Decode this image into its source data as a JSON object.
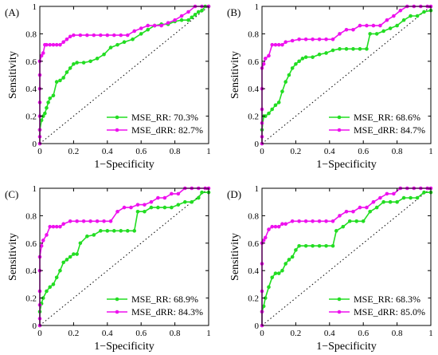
{
  "colors": {
    "mse_rr": "#22dd22",
    "mse_drr": "#ee11ee",
    "chance": "#000000"
  },
  "chart_data": [
    {
      "type": "line",
      "panel": "(A)",
      "xlabel": "1−Specificity",
      "ylabel": "Sensitivity",
      "xlim": [
        0,
        1
      ],
      "ylim": [
        0,
        1
      ],
      "xticks": [
        "0",
        "0.2",
        "0.4",
        "0.6",
        "0.8",
        "1"
      ],
      "yticks": [
        "0",
        "0.2",
        "0.4",
        "0.6",
        "0.8",
        "1"
      ],
      "legend_position": "bottom-right",
      "series": [
        {
          "name": "MSE_RR: 70.3%",
          "color": "#22dd22",
          "x": [
            0,
            0,
            0.01,
            0.02,
            0.03,
            0.04,
            0.05,
            0.06,
            0.08,
            0.1,
            0.12,
            0.14,
            0.16,
            0.18,
            0.2,
            0.22,
            0.26,
            0.3,
            0.34,
            0.38,
            0.42,
            0.46,
            0.5,
            0.55,
            0.6,
            0.64,
            0.68,
            0.72,
            0.76,
            0.8,
            0.84,
            0.88,
            0.9,
            0.92,
            0.94,
            0.96,
            0.98,
            1.0
          ],
          "y": [
            0,
            0.1,
            0.17,
            0.2,
            0.22,
            0.26,
            0.3,
            0.33,
            0.35,
            0.45,
            0.46,
            0.48,
            0.52,
            0.55,
            0.58,
            0.59,
            0.59,
            0.6,
            0.62,
            0.65,
            0.7,
            0.72,
            0.74,
            0.76,
            0.8,
            0.83,
            0.86,
            0.87,
            0.87,
            0.89,
            0.9,
            0.9,
            0.92,
            0.94,
            0.96,
            0.97,
            1.0,
            1.0
          ]
        },
        {
          "name": "MSE_dRR: 82.7%",
          "color": "#ee11ee",
          "x": [
            0,
            0,
            0,
            0,
            0,
            0,
            0,
            0,
            0.01,
            0.02,
            0.03,
            0.04,
            0.06,
            0.08,
            0.1,
            0.12,
            0.14,
            0.16,
            0.18,
            0.2,
            0.24,
            0.28,
            0.32,
            0.36,
            0.4,
            0.44,
            0.48,
            0.52,
            0.56,
            0.6,
            0.64,
            0.68,
            0.72,
            0.76,
            0.8,
            0.84,
            0.88,
            0.92,
            0.96,
            1.0
          ],
          "y": [
            0,
            0.05,
            0.1,
            0.2,
            0.3,
            0.4,
            0.5,
            0.6,
            0.64,
            0.66,
            0.72,
            0.72,
            0.72,
            0.72,
            0.72,
            0.72,
            0.74,
            0.76,
            0.78,
            0.79,
            0.79,
            0.79,
            0.79,
            0.79,
            0.79,
            0.79,
            0.79,
            0.79,
            0.82,
            0.84,
            0.86,
            0.86,
            0.86,
            0.88,
            0.9,
            0.93,
            0.96,
            1.0,
            1.0,
            1.0
          ]
        }
      ]
    },
    {
      "type": "line",
      "panel": "(B)",
      "xlabel": "1−Specificity",
      "ylabel": "Sensitivity",
      "xlim": [
        0,
        1
      ],
      "ylim": [
        0,
        1
      ],
      "xticks": [
        "0",
        "0.2",
        "0.4",
        "0.6",
        "0.8",
        "1"
      ],
      "yticks": [
        "0",
        "0.2",
        "0.4",
        "0.6",
        "0.8",
        "1"
      ],
      "legend_position": "bottom-right",
      "series": [
        {
          "name": "MSE_RR: 68.6%",
          "color": "#22dd22",
          "x": [
            0,
            0,
            0.01,
            0.02,
            0.04,
            0.06,
            0.08,
            0.1,
            0.12,
            0.14,
            0.16,
            0.18,
            0.2,
            0.22,
            0.24,
            0.26,
            0.3,
            0.34,
            0.38,
            0.42,
            0.46,
            0.5,
            0.54,
            0.58,
            0.62,
            0.64,
            0.68,
            0.72,
            0.76,
            0.8,
            0.84,
            0.88,
            0.92,
            0.96,
            1.0
          ],
          "y": [
            0,
            0.1,
            0.2,
            0.2,
            0.22,
            0.25,
            0.28,
            0.3,
            0.38,
            0.45,
            0.5,
            0.55,
            0.58,
            0.6,
            0.62,
            0.63,
            0.63,
            0.65,
            0.66,
            0.68,
            0.69,
            0.69,
            0.69,
            0.69,
            0.69,
            0.8,
            0.8,
            0.82,
            0.84,
            0.86,
            0.9,
            0.93,
            0.93,
            0.96,
            0.97
          ]
        },
        {
          "name": "MSE_dRR: 84.7%",
          "color": "#ee11ee",
          "x": [
            0,
            0,
            0,
            0,
            0,
            0,
            0.01,
            0.02,
            0.04,
            0.06,
            0.08,
            0.1,
            0.12,
            0.14,
            0.18,
            0.22,
            0.26,
            0.3,
            0.34,
            0.38,
            0.42,
            0.46,
            0.5,
            0.54,
            0.58,
            0.62,
            0.66,
            0.7,
            0.74,
            0.78,
            0.82,
            0.86,
            0.9,
            0.94,
            0.98,
            1.0
          ],
          "y": [
            0,
            0.05,
            0.15,
            0.25,
            0.4,
            0.55,
            0.58,
            0.62,
            0.64,
            0.72,
            0.72,
            0.72,
            0.72,
            0.74,
            0.75,
            0.76,
            0.76,
            0.76,
            0.76,
            0.76,
            0.76,
            0.8,
            0.83,
            0.83,
            0.86,
            0.86,
            0.86,
            0.86,
            0.9,
            0.93,
            0.97,
            1.0,
            1.0,
            1.0,
            1.0,
            1.0
          ]
        }
      ]
    },
    {
      "type": "line",
      "panel": "(C)",
      "xlabel": "1−Specificity",
      "ylabel": "Sensitivity",
      "xlim": [
        0,
        1
      ],
      "ylim": [
        0,
        1
      ],
      "xticks": [
        "0",
        "0.2",
        "0.4",
        "0.6",
        "0.8",
        "1"
      ],
      "yticks": [
        "0",
        "0.2",
        "0.4",
        "0.6",
        "0.8",
        "1"
      ],
      "legend_position": "bottom-right",
      "series": [
        {
          "name": "MSE_RR: 68.9%",
          "color": "#22dd22",
          "x": [
            0,
            0,
            0.01,
            0.02,
            0.04,
            0.06,
            0.08,
            0.1,
            0.12,
            0.14,
            0.16,
            0.18,
            0.2,
            0.22,
            0.24,
            0.28,
            0.32,
            0.36,
            0.4,
            0.44,
            0.48,
            0.52,
            0.56,
            0.58,
            0.62,
            0.66,
            0.7,
            0.74,
            0.78,
            0.82,
            0.86,
            0.9,
            0.94,
            0.96,
            1.0
          ],
          "y": [
            0,
            0.1,
            0.16,
            0.2,
            0.25,
            0.28,
            0.3,
            0.35,
            0.4,
            0.46,
            0.48,
            0.5,
            0.52,
            0.52,
            0.6,
            0.65,
            0.66,
            0.69,
            0.69,
            0.69,
            0.69,
            0.69,
            0.69,
            0.83,
            0.83,
            0.86,
            0.86,
            0.86,
            0.86,
            0.88,
            0.9,
            0.9,
            0.93,
            0.97,
            0.97
          ]
        },
        {
          "name": "MSE_dRR: 84.3%",
          "color": "#ee11ee",
          "x": [
            0,
            0,
            0,
            0,
            0,
            0,
            0.01,
            0.02,
            0.04,
            0.06,
            0.08,
            0.1,
            0.12,
            0.14,
            0.18,
            0.22,
            0.26,
            0.3,
            0.34,
            0.38,
            0.42,
            0.46,
            0.5,
            0.54,
            0.58,
            0.62,
            0.66,
            0.7,
            0.74,
            0.78,
            0.82,
            0.86,
            0.9,
            0.94,
            0.98,
            1.0
          ],
          "y": [
            0,
            0.05,
            0.15,
            0.25,
            0.4,
            0.5,
            0.58,
            0.62,
            0.66,
            0.72,
            0.72,
            0.72,
            0.72,
            0.74,
            0.76,
            0.76,
            0.76,
            0.76,
            0.76,
            0.76,
            0.76,
            0.83,
            0.86,
            0.86,
            0.88,
            0.88,
            0.9,
            0.93,
            0.93,
            0.96,
            0.96,
            1.0,
            1.0,
            1.0,
            1.0,
            1.0
          ]
        }
      ]
    },
    {
      "type": "line",
      "panel": "(D)",
      "xlabel": "1−Specificity",
      "ylabel": "Sensitivity",
      "xlim": [
        0,
        1
      ],
      "ylim": [
        0,
        1
      ],
      "xticks": [
        "0",
        "0.2",
        "0.4",
        "0.6",
        "0.8",
        "1"
      ],
      "yticks": [
        "0",
        "0.2",
        "0.4",
        "0.6",
        "0.8",
        "1"
      ],
      "legend_position": "bottom-right",
      "series": [
        {
          "name": "MSE_RR: 68.3%",
          "color": "#22dd22",
          "x": [
            0,
            0,
            0.01,
            0.02,
            0.04,
            0.06,
            0.08,
            0.1,
            0.12,
            0.14,
            0.16,
            0.18,
            0.2,
            0.22,
            0.26,
            0.3,
            0.34,
            0.38,
            0.42,
            0.44,
            0.48,
            0.52,
            0.56,
            0.6,
            0.64,
            0.68,
            0.72,
            0.76,
            0.8,
            0.84,
            0.88,
            0.92,
            0.96,
            1.0
          ],
          "y": [
            0,
            0.1,
            0.14,
            0.2,
            0.28,
            0.35,
            0.38,
            0.38,
            0.4,
            0.45,
            0.48,
            0.5,
            0.55,
            0.58,
            0.58,
            0.58,
            0.58,
            0.58,
            0.58,
            0.69,
            0.72,
            0.76,
            0.76,
            0.76,
            0.83,
            0.86,
            0.9,
            0.9,
            0.9,
            0.93,
            0.93,
            0.93,
            0.97,
            0.97
          ]
        },
        {
          "name": "MSE_dRR: 85.0%",
          "color": "#ee11ee",
          "x": [
            0,
            0,
            0,
            0,
            0,
            0.01,
            0.02,
            0.04,
            0.06,
            0.08,
            0.1,
            0.12,
            0.14,
            0.18,
            0.22,
            0.26,
            0.3,
            0.34,
            0.38,
            0.42,
            0.46,
            0.5,
            0.54,
            0.58,
            0.62,
            0.66,
            0.7,
            0.74,
            0.78,
            0.82,
            0.86,
            0.9,
            0.94,
            0.98,
            1.0
          ],
          "y": [
            0,
            0.1,
            0.25,
            0.45,
            0.6,
            0.62,
            0.64,
            0.7,
            0.72,
            0.72,
            0.72,
            0.74,
            0.74,
            0.76,
            0.76,
            0.76,
            0.76,
            0.76,
            0.76,
            0.76,
            0.8,
            0.83,
            0.83,
            0.86,
            0.86,
            0.9,
            0.93,
            0.96,
            0.96,
            1.0,
            1.0,
            1.0,
            1.0,
            1.0,
            1.0
          ]
        }
      ]
    }
  ]
}
